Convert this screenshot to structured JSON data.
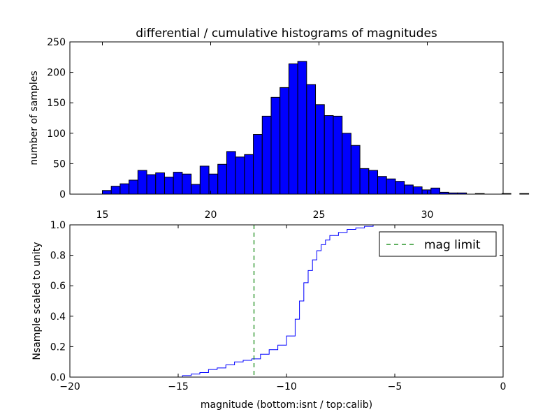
{
  "chart_data": [
    {
      "type": "bar",
      "title": "differential / cumulative histograms of magnitudes",
      "ylabel": "number of samples",
      "xlabel": "",
      "xlim": [
        13.5,
        33.5
      ],
      "ylim": [
        0,
        250
      ],
      "xticks": [
        "15",
        "20",
        "25",
        "30"
      ],
      "yticks": [
        "0",
        "50",
        "100",
        "150",
        "200",
        "250"
      ],
      "bin_start": 15.0,
      "bin_width": 0.41,
      "values": [
        6,
        13,
        17,
        23,
        39,
        32,
        35,
        28,
        36,
        33,
        16,
        46,
        33,
        49,
        70,
        61,
        65,
        98,
        128,
        159,
        175,
        214,
        218,
        180,
        147,
        129,
        128,
        100,
        80,
        42,
        39,
        29,
        25,
        21,
        15,
        12,
        7,
        10,
        3,
        2,
        2,
        0,
        1,
        0,
        0,
        1,
        0,
        1,
        0
      ],
      "bar_color": "#0000ff"
    },
    {
      "type": "line",
      "ylabel": "Nsample scaled to unity",
      "xlabel": "magnitude (bottom:isnt / top:calib)",
      "xlim": [
        -20,
        0
      ],
      "ylim": [
        0,
        1.0
      ],
      "xticks": [
        "−20",
        "−15",
        "−10",
        "−5",
        "0"
      ],
      "yticks": [
        "0.0",
        "0.2",
        "0.4",
        "0.6",
        "0.8",
        "1.0"
      ],
      "series": [
        {
          "name": "cumulative",
          "color": "#0000ff",
          "x": [
            -20,
            -15.2,
            -14.8,
            -14.4,
            -14.0,
            -13.6,
            -13.2,
            -12.8,
            -12.4,
            -12.0,
            -11.6,
            -11.2,
            -10.8,
            -10.4,
            -10.0,
            -9.6,
            -9.4,
            -9.2,
            -9.0,
            -8.8,
            -8.6,
            -8.4,
            -8.2,
            -8.0,
            -7.6,
            -7.2,
            -6.8,
            -6.4,
            -6.0,
            -5.6,
            -5.0,
            -4.0,
            0
          ],
          "y": [
            0.0,
            0.0,
            0.01,
            0.02,
            0.03,
            0.05,
            0.06,
            0.08,
            0.1,
            0.11,
            0.12,
            0.15,
            0.18,
            0.21,
            0.27,
            0.38,
            0.5,
            0.62,
            0.7,
            0.77,
            0.83,
            0.87,
            0.9,
            0.93,
            0.95,
            0.97,
            0.98,
            0.99,
            1.0,
            1.0,
            1.0,
            1.0,
            1.0
          ]
        }
      ],
      "vline": {
        "x": -11.5,
        "label": "mag limit",
        "color": "#008000",
        "style": "dashed"
      },
      "legend": {
        "position": "top-right",
        "entries": [
          "mag limit"
        ]
      }
    }
  ]
}
